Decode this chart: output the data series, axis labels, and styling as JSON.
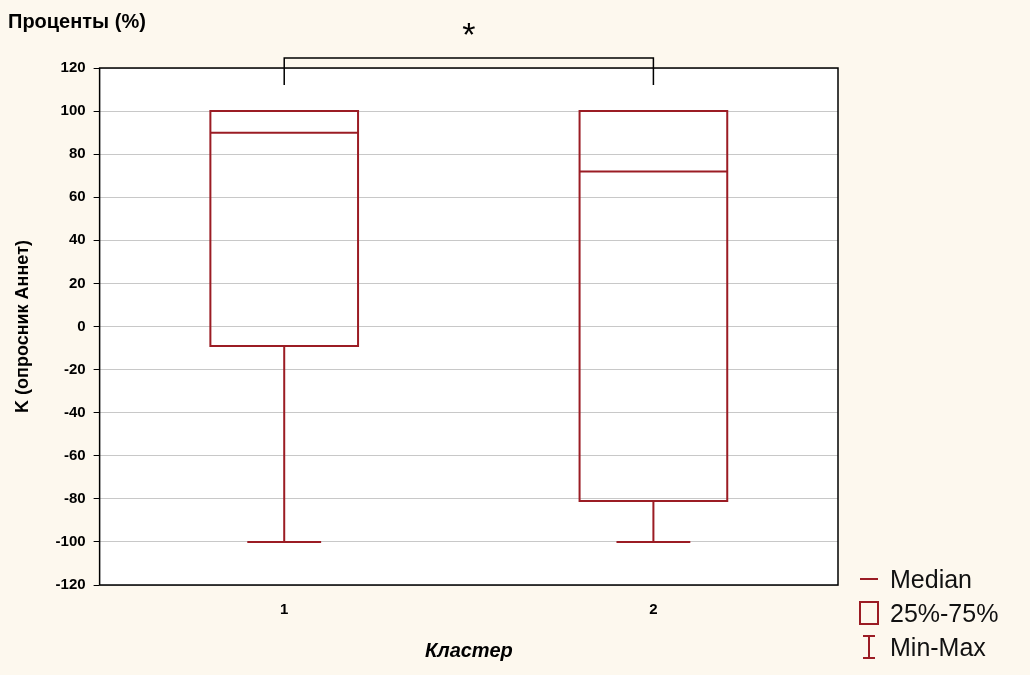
{
  "chart_data": {
    "type": "box",
    "title": "Проценты (%)",
    "ylabel": "K (опросник Аннет)",
    "xlabel": "Кластер",
    "categories": [
      "1",
      "2"
    ],
    "color": "#9b1c24",
    "boxes": [
      {
        "low": -100,
        "q1": -9,
        "median": 90,
        "q3": 100,
        "high": 100
      },
      {
        "low": -100,
        "q1": -81,
        "median": 72,
        "q3": 100,
        "high": 100
      }
    ],
    "ylim": [
      -120,
      120
    ],
    "yticks": [
      -120,
      -100,
      -80,
      -60,
      -40,
      -20,
      0,
      20,
      40,
      60,
      80,
      100,
      120
    ],
    "grid": "y",
    "annotations": [
      "*",
      "Median",
      "25%-75%",
      "Min-Max"
    ]
  }
}
